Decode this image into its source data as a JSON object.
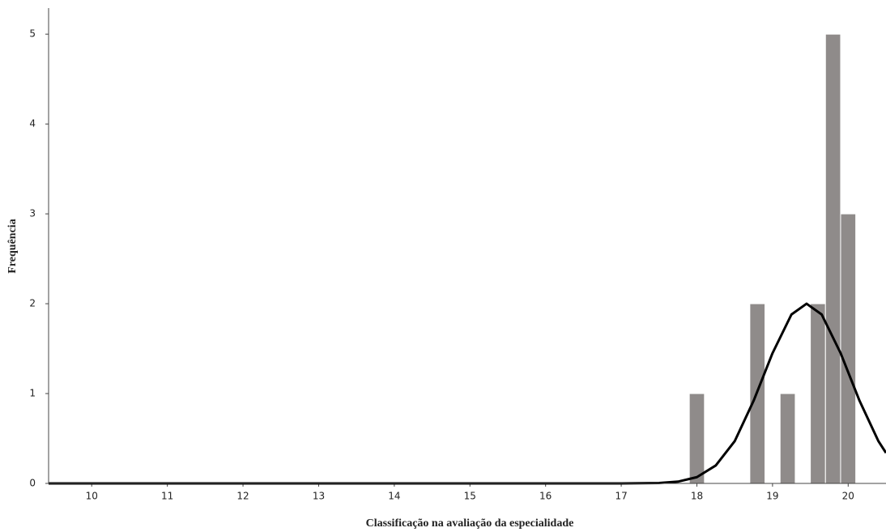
{
  "chart_data": {
    "type": "histogram",
    "x_label": "Classificação na avaliação da especialidade",
    "y_label": "Frequência",
    "bins": [
      17.9,
      18.1,
      18.3,
      18.5,
      18.7,
      18.9,
      19.1,
      19.3,
      19.5,
      19.7,
      19.9,
      20.1
    ],
    "counts": [
      1,
      0,
      0,
      0,
      2,
      0,
      1,
      0,
      2,
      5,
      3
    ],
    "color": "#8f8b8a",
    "curve": {
      "color": "#000000",
      "x": [
        9.43,
        17,
        17.5,
        17.75,
        18,
        18.25,
        18.5,
        18.75,
        19,
        19.25,
        19.45,
        19.65,
        19.9,
        20.15,
        20.4,
        20.5
      ],
      "y": [
        0,
        0,
        0.005,
        0.02,
        0.07,
        0.2,
        0.47,
        0.92,
        1.45,
        1.88,
        2,
        1.88,
        1.45,
        0.92,
        0.47,
        0.34
      ]
    },
    "xlim": [
      9.43,
      20.5
    ],
    "ylim": [
      0,
      5.29
    ],
    "xticks": [
      10,
      11,
      12,
      13,
      14,
      15,
      16,
      17,
      18,
      19,
      20
    ],
    "yticks": [
      0,
      1,
      2,
      3,
      4,
      5
    ]
  }
}
